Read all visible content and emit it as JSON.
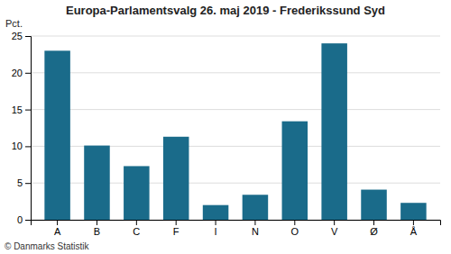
{
  "chart_data": {
    "type": "bar",
    "title": "Europa-Parlamentsvalg 26. maj 2019 - Frederikssund Syd",
    "categories": [
      "A",
      "B",
      "C",
      "F",
      "I",
      "N",
      "O",
      "V",
      "Ø",
      "Å"
    ],
    "values": [
      23.0,
      10.1,
      7.3,
      11.3,
      2.0,
      3.4,
      13.4,
      24.0,
      4.1,
      2.3
    ],
    "color": "#1a6b8a",
    "ylim": [
      0,
      25
    ],
    "yticks": [
      0,
      5,
      10,
      15,
      20,
      25
    ],
    "ylabel": "Pct.",
    "annotations": [
      "© Danmarks Statistik"
    ],
    "grid": true
  }
}
